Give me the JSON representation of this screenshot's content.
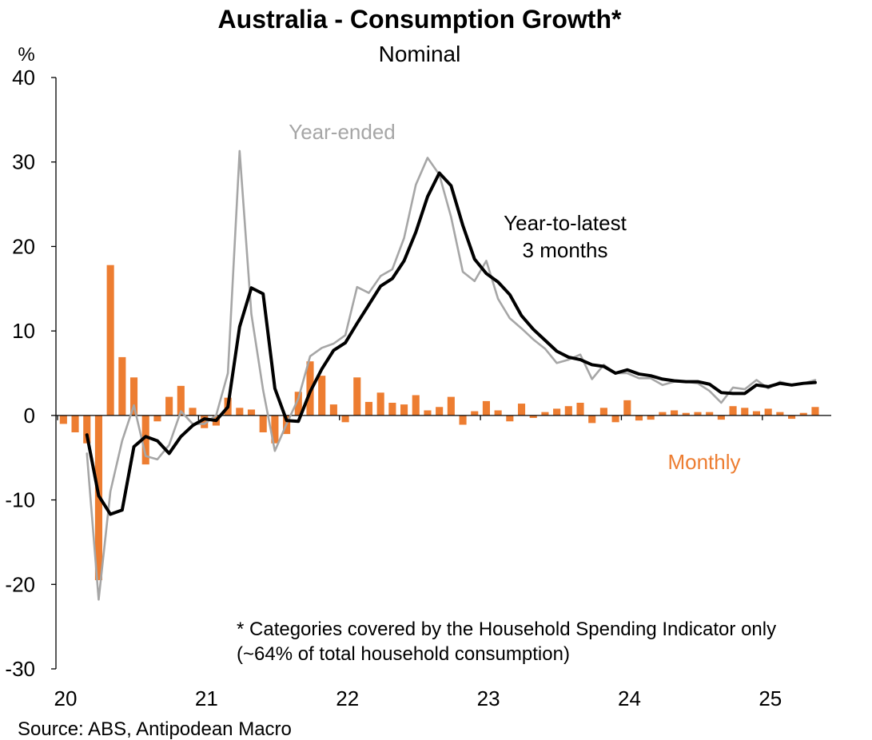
{
  "chart_data": {
    "type": "bar+line",
    "title": "Australia - Consumption Growth*",
    "subtitle": "Nominal",
    "ylabel": "%",
    "ylim": [
      -30,
      40
    ],
    "yticks": [
      40,
      30,
      20,
      10,
      0,
      -10,
      -20,
      -30
    ],
    "ytick_labels": [
      "40",
      "30",
      "20",
      "10",
      "0",
      "-10",
      "-20",
      "-30"
    ],
    "xlim": [
      2020.0,
      2025.5
    ],
    "xticks": [
      2020,
      2021,
      2022,
      2023,
      2024,
      2025
    ],
    "xtick_labels": [
      "20",
      "21",
      "22",
      "23",
      "24",
      "25"
    ],
    "x_start_month": "2020-01",
    "grid": false,
    "series": [
      {
        "name": "Monthly",
        "type": "bar",
        "color": "#ED7D31",
        "values": [
          -1.0,
          -2.0,
          -3.3,
          -19.5,
          17.8,
          6.9,
          4.5,
          -5.8,
          -0.7,
          2.2,
          3.5,
          0.9,
          -1.5,
          -1.2,
          2.1,
          0.9,
          0.7,
          -2.0,
          -3.3,
          -2.2,
          2.8,
          6.4,
          4.7,
          1.3,
          -0.8,
          4.5,
          1.6,
          2.7,
          1.5,
          1.3,
          2.4,
          0.6,
          1.0,
          2.2,
          -1.1,
          0.5,
          1.7,
          0.6,
          -0.7,
          1.4,
          -0.3,
          0.4,
          0.8,
          1.1,
          1.5,
          -0.9,
          0.9,
          -0.8,
          1.8,
          -0.6,
          -0.5,
          0.4,
          0.6,
          0.3,
          0.4,
          0.4,
          -0.5,
          1.1,
          0.9,
          0.5,
          0.8,
          0.4,
          -0.4,
          0.3,
          1.0
        ]
      },
      {
        "name": "Year-ended",
        "type": "line",
        "color": "#A6A6A6",
        "values": [
          null,
          null,
          -4.5,
          -21.8,
          -9.0,
          -3.0,
          1.2,
          -4.8,
          -5.2,
          -3.5,
          0.5,
          -1.0,
          -1.0,
          0.0,
          5.0,
          31.3,
          12.0,
          3.0,
          -4.2,
          -1.0,
          2.0,
          7.0,
          8.0,
          8.5,
          9.5,
          15.2,
          14.5,
          16.5,
          17.3,
          21.0,
          27.3,
          30.5,
          28.5,
          23.5,
          17.0,
          15.9,
          18.3,
          13.8,
          11.5,
          10.3,
          9.0,
          7.9,
          6.2,
          6.6,
          7.2,
          4.3,
          6.0,
          5.0,
          5.0,
          4.4,
          4.4,
          3.6,
          4.0,
          4.0,
          3.8,
          2.9,
          1.5,
          3.3,
          3.1,
          4.2,
          3.2,
          4.0,
          3.6,
          3.8,
          4.2
        ]
      },
      {
        "name": "Year-to-latest\n3 months",
        "type": "line",
        "color": "#000000",
        "values": [
          null,
          null,
          -2.3,
          -9.5,
          -11.7,
          -11.2,
          -3.7,
          -2.5,
          -3.0,
          -4.5,
          -2.5,
          -1.2,
          -0.4,
          -0.6,
          1.0,
          10.5,
          15.1,
          14.4,
          3.2,
          -0.6,
          -0.7,
          2.8,
          5.5,
          7.7,
          8.6,
          10.9,
          13.1,
          15.3,
          16.2,
          18.3,
          21.7,
          25.9,
          28.7,
          27.2,
          22.5,
          18.5,
          16.8,
          15.8,
          14.3,
          11.8,
          10.2,
          8.9,
          7.6,
          6.9,
          6.6,
          6.0,
          5.8,
          5.0,
          5.4,
          4.9,
          4.7,
          4.3,
          4.1,
          4.0,
          4.0,
          3.7,
          2.7,
          2.6,
          2.6,
          3.6,
          3.4,
          3.8,
          3.6,
          3.8,
          3.9
        ]
      }
    ],
    "annotations": {
      "year_ended": "Year-ended",
      "year_to_latest_line1": "Year-to-latest",
      "year_to_latest_line2": "3 months",
      "monthly": "Monthly",
      "footnote_line1": "* Categories covered by the Household Spending Indicator only",
      "footnote_line2": "(~64% of total household consumption)",
      "source": "Source: ABS, Antipodean Macro"
    }
  }
}
